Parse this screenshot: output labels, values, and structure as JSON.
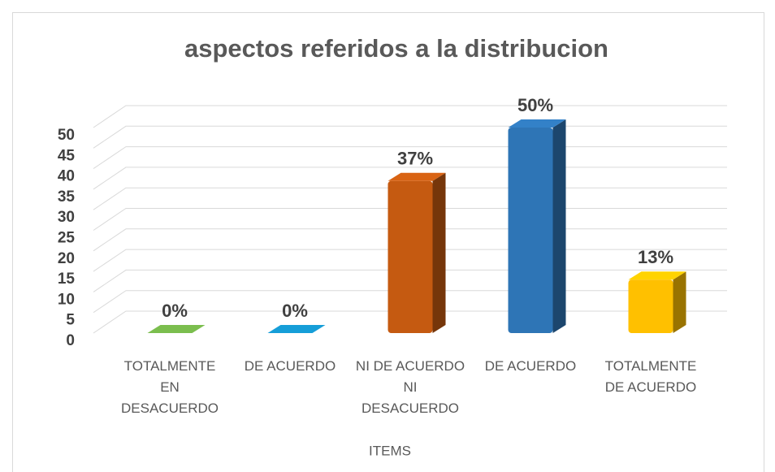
{
  "chart_data": {
    "type": "bar3d",
    "title": "aspectos referidos a la distribucion",
    "categories": [
      "TOTALMENTE EN DESACUERDO",
      "DE ACUERDO",
      "NI DE ACUERDO NI DESACUERDO",
      "DE ACUERDO",
      "TOTALMENTE DE ACUERDO"
    ],
    "values": [
      0,
      0,
      37,
      50,
      13
    ],
    "value_labels": [
      "0%",
      "0%",
      "37%",
      "50%",
      "13%"
    ],
    "colors": [
      "#70ad47",
      "#1490c4",
      "#c55a11",
      "#2e75b6",
      "#ffc000"
    ],
    "xlabel": "ITEMS",
    "ylim": [
      0,
      50
    ],
    "yticks": [
      0,
      5,
      10,
      15,
      20,
      25,
      30,
      35,
      40,
      45,
      50
    ],
    "grid": true
  }
}
